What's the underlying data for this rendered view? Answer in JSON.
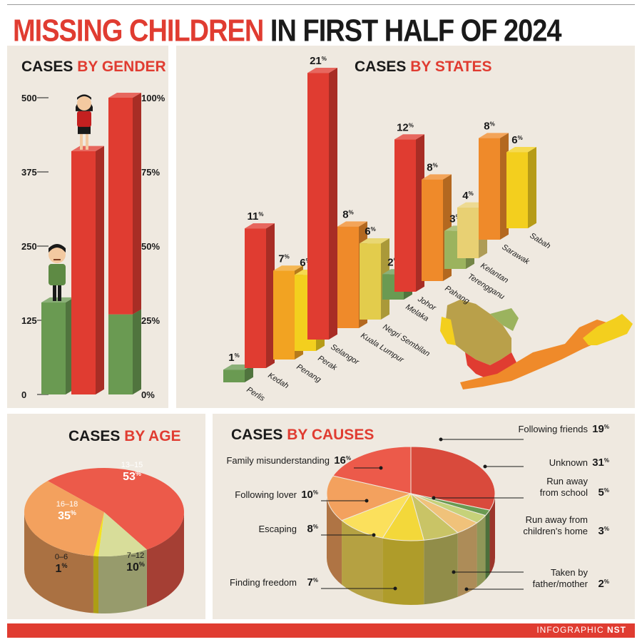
{
  "header": {
    "title_accent": "MISSING CHILDREN",
    "title_rest": "IN FIRST HALF OF 2024"
  },
  "footer": {
    "credit_prefix": "INFOGRAPHIC",
    "credit_brand": "NST"
  },
  "colors": {
    "red": "#e03c31",
    "dark_red": "#a81e1a",
    "green": "#6a9a52",
    "dark_green": "#4a7a3a",
    "orange": "#ef8a2a",
    "yellow": "#f3cf1e",
    "panel_bg": "#efe9e0"
  },
  "icons": {
    "girl": "girl-icon",
    "boy": "boy-icon",
    "map": "malaysia-map"
  },
  "chart_data": [
    {
      "type": "bar",
      "title": "CASES BY GENDER",
      "title_parts": [
        "CASES",
        "BY GENDER"
      ],
      "left_axis": {
        "ticks": [
          "0",
          "125",
          "250",
          "375",
          "500"
        ],
        "ylim": [
          0,
          500
        ]
      },
      "right_axis": {
        "ticks": [
          "0%",
          "25%",
          "50%",
          "75%",
          "100%"
        ],
        "ylim": [
          0,
          100
        ]
      },
      "series": [
        {
          "name": "",
          "values": [
            155
          ]
        },
        {
          "name": "",
          "values": [
            410
          ]
        }
      ],
      "stacked_share_percent": [
        27,
        73
      ],
      "series_colors": [
        "#6a9a52",
        "#e03c31"
      ]
    },
    {
      "type": "bar",
      "title": "CASES BY STATES",
      "title_parts": [
        "CASES",
        "BY STATES"
      ],
      "categories": [
        "Perlis",
        "Kedah",
        "Penang",
        "Perak",
        "Selangor",
        "Kuala Lumpur",
        "Negri Sembilan",
        "Melaka",
        "Johor",
        "Pahang",
        "Terengganu",
        "Kelantan",
        "Sarawak",
        "Sabah"
      ],
      "values": [
        1,
        11,
        7,
        6,
        21,
        8,
        6,
        2,
        12,
        8,
        3,
        4,
        8,
        6
      ],
      "value_labels": [
        "1%",
        "11%",
        "7%",
        "6%",
        "21%",
        "8%",
        "6%",
        "2%",
        "12%",
        "8%",
        "3%",
        "4%",
        "8%",
        "6%"
      ],
      "bar_colors": [
        "#6a9a52",
        "#e03c31",
        "#f2a322",
        "#f3cf1e",
        "#e03c31",
        "#ef8a2a",
        "#e3cc4c",
        "#6a9a52",
        "#e03c31",
        "#ef8a2a",
        "#9bb35e",
        "#e8d073",
        "#ef8a2a",
        "#f3cf1e"
      ]
    },
    {
      "type": "pie",
      "title": "CASES BY AGE",
      "title_parts": [
        "CASES",
        "BY AGE"
      ],
      "categories": [
        "13–15",
        "7–12",
        "0–6",
        "16–18"
      ],
      "values": [
        53,
        10,
        1,
        35
      ],
      "value_labels": [
        "53%",
        "10%",
        "1%",
        "35%"
      ],
      "slice_colors": [
        "#ec5a4a",
        "#d8dd9a",
        "#f5e21e",
        "#f3a15e"
      ]
    },
    {
      "type": "pie",
      "title": "CASES BY CAUSES",
      "title_parts": [
        "CASES",
        "BY CAUSES"
      ],
      "categories": [
        "Unknown",
        "Taken by father/mother",
        "Run away from children's home",
        "Run away from school",
        "Finding freedom",
        "Escaping",
        "Following lover",
        "Family misunderstanding",
        "Following friends"
      ],
      "values": [
        31,
        2,
        3,
        5,
        7,
        8,
        10,
        16,
        19
      ],
      "value_labels": [
        "31%",
        "2%",
        "3%",
        "5%",
        "7%",
        "8%",
        "10%",
        "16%",
        "19%"
      ],
      "label_lines": [
        [
          "Unknown"
        ],
        [
          "Taken by",
          "father/mother"
        ],
        [
          "Run away from",
          "children's home"
        ],
        [
          "Run away",
          "from school"
        ],
        [
          "Finding freedom"
        ],
        [
          "Escaping"
        ],
        [
          "Following lover"
        ],
        [
          "Family misunderstanding"
        ],
        [
          "Following friends"
        ]
      ],
      "slice_colors": [
        "#d94a3c",
        "#6a9a52",
        "#c6d27a",
        "#f0c27a",
        "#c9c466",
        "#f3d83a",
        "#fbe05c",
        "#f3a15e",
        "#ec5a4a"
      ]
    }
  ]
}
